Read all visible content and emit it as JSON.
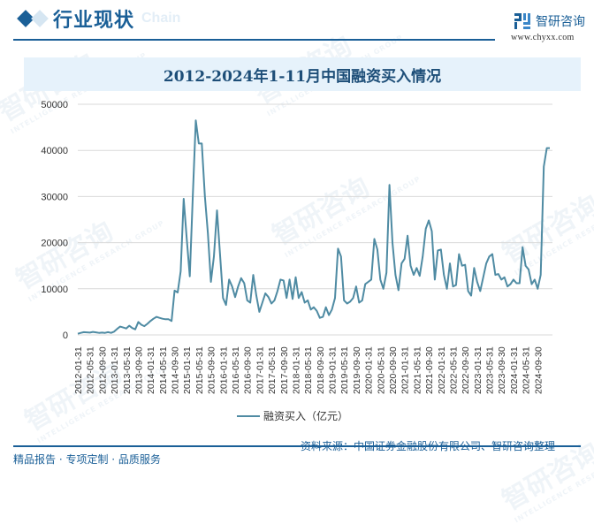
{
  "header": {
    "section_title": "行业现状",
    "ghost_text": "Chain",
    "brand_name": "智研咨询",
    "brand_url": "www.chyxx.com"
  },
  "chart_title": "2012-2024年1-11月中国融资买入情况",
  "legend": {
    "label": "融资买入（亿元）",
    "color": "#4f8ba3"
  },
  "footer": {
    "left": "精品报告 · 专项定制 · 品质服务",
    "right": "资料来源：中国证券金融股份有限公司、智研咨询整理"
  },
  "watermark": {
    "text": "智研咨询",
    "subtext": "INTELLIGENCE RESEARCH GROUP"
  },
  "colors": {
    "brand": "#1a5f97",
    "line": "#4f8ba3",
    "title_bg": "#e6f2fb",
    "grid": "#d9d9d9"
  },
  "chart_data": {
    "type": "line",
    "title": "2012-2024年1-11月中国融资买入情况",
    "xlabel": "",
    "ylabel": "",
    "ylim": [
      0,
      50000
    ],
    "yticks": [
      0,
      10000,
      20000,
      30000,
      40000,
      50000
    ],
    "grid": true,
    "legend_position": "bottom",
    "x_tick_labels": [
      "2012-01-31",
      "2012-05-31",
      "2012-09-30",
      "2013-01-31",
      "2013-05-31",
      "2013-09-30",
      "2014-01-31",
      "2014-05-31",
      "2014-09-30",
      "2015-01-31",
      "2015-05-31",
      "2015-09-30",
      "2016-01-31",
      "2016-05-31",
      "2016-09-30",
      "2017-01-31",
      "2017-05-31",
      "2017-09-30",
      "2018-01-31",
      "2018-05-31",
      "2018-09-30",
      "2019-01-31",
      "2019-05-31",
      "2019-09-30",
      "2020-01-31",
      "2020-05-31",
      "2020-09-30",
      "2021-01-31",
      "2021-05-31",
      "2021-09-30",
      "2022-01-31",
      "2022-05-31",
      "2022-09-30",
      "2023-01-31",
      "2023-05-31",
      "2023-09-30",
      "2024-01-31",
      "2024-05-31",
      "2024-09-30"
    ],
    "x_start": "2012-01",
    "x_end": "2024-11",
    "frequency": "monthly",
    "series": [
      {
        "name": "融资买入（亿元）",
        "values": [
          250,
          450,
          600,
          550,
          500,
          650,
          550,
          450,
          500,
          450,
          600,
          450,
          700,
          1300,
          1800,
          1600,
          1400,
          2000,
          1500,
          1200,
          2800,
          2200,
          1900,
          2400,
          3000,
          3500,
          3900,
          3700,
          3500,
          3400,
          3400,
          3000,
          9600,
          9200,
          13800,
          29500,
          21000,
          12700,
          30000,
          46500,
          41500,
          41500,
          30000,
          22000,
          11500,
          17000,
          27000,
          17500,
          8000,
          6500,
          12000,
          10500,
          8200,
          10500,
          12300,
          11200,
          7500,
          7000,
          13000,
          8500,
          5000,
          7000,
          9000,
          8200,
          6800,
          7500,
          9500,
          12000,
          11800,
          8000,
          12000,
          7800,
          12500,
          8000,
          9300,
          7000,
          7500,
          5500,
          6000,
          5200,
          3700,
          3900,
          6000,
          4300,
          5500,
          8000,
          18700,
          17000,
          7500,
          6800,
          7200,
          8000,
          10500,
          7000,
          7500,
          11000,
          11500,
          12000,
          20800,
          18500,
          12000,
          10000,
          13500,
          32500,
          20000,
          13000,
          9700,
          15500,
          16500,
          21500,
          15000,
          13000,
          14500,
          12800,
          17000,
          23000,
          24800,
          22500,
          12000,
          18300,
          18500,
          13000,
          10000,
          15500,
          10500,
          10800,
          17500,
          15000,
          15200,
          9500,
          8500,
          14500,
          11500,
          9500,
          12500,
          15500,
          17000,
          17500,
          13000,
          13200,
          12000,
          12500,
          10500,
          11000,
          12000,
          11200,
          11200,
          19000,
          15000,
          14200,
          11000,
          12000,
          10000,
          13000,
          36500,
          40500,
          40500
        ]
      }
    ]
  }
}
